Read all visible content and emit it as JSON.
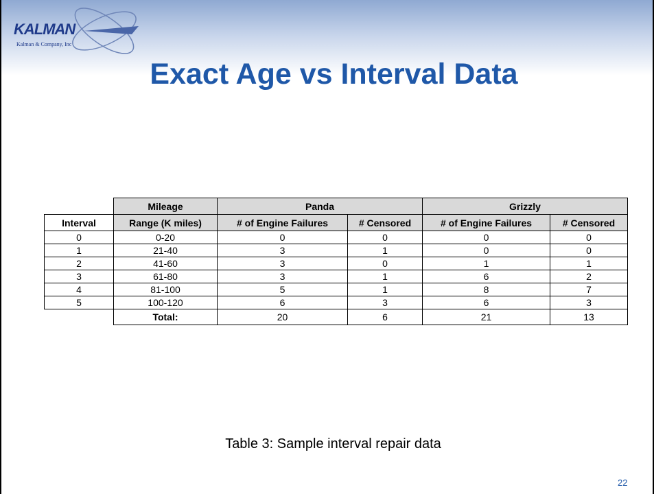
{
  "header": {
    "logo": "KALMAN",
    "logo_sub": "Kalman & Company, Inc"
  },
  "title": "Exact Age vs Interval Data",
  "table": {
    "header1": [
      "Mileage",
      "Panda",
      "Grizzly"
    ],
    "header2": [
      "Interval",
      "Range (K miles)",
      "# of Engine Failures",
      "# Censored",
      "# of Engine Failures",
      "# Censored"
    ],
    "rows": [
      [
        "0",
        "0-20",
        0,
        0,
        0,
        0
      ],
      [
        "1",
        "21-40",
        3,
        1,
        0,
        0
      ],
      [
        "2",
        "41-60",
        3,
        0,
        1,
        1
      ],
      [
        "3",
        "61-80",
        3,
        1,
        6,
        2
      ],
      [
        "4",
        "81-100",
        5,
        1,
        8,
        7
      ],
      [
        "5",
        "100-120",
        6,
        3,
        6,
        3
      ]
    ],
    "total": {
      "label": "Total:",
      "values": [
        20,
        6,
        21,
        13
      ]
    }
  },
  "caption": "Table 3: Sample interval repair data",
  "page_number": "22"
}
